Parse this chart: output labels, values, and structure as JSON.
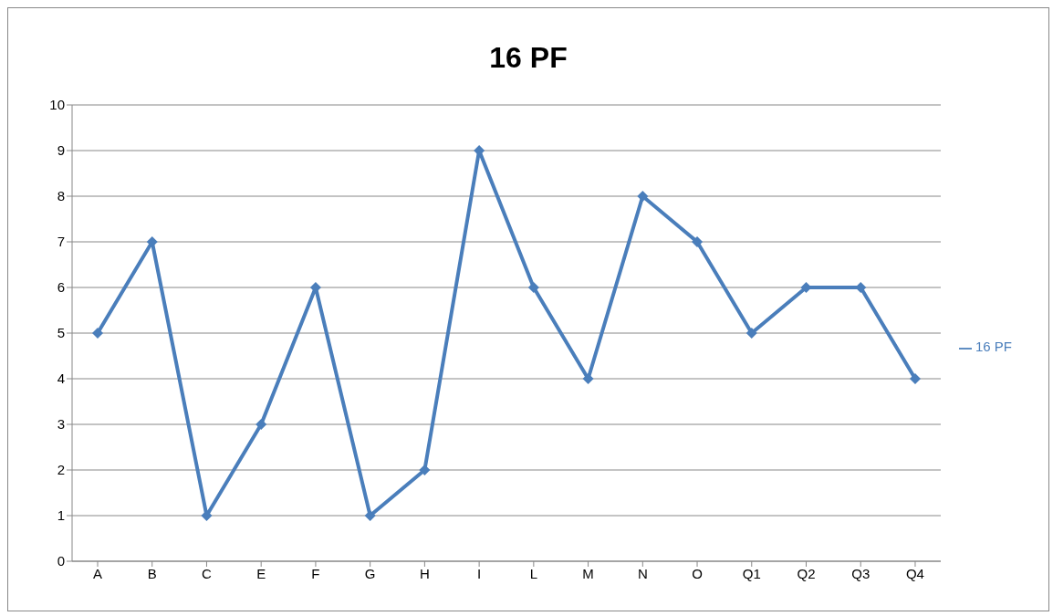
{
  "chart_data": {
    "type": "line",
    "title": "16 PF",
    "categories": [
      "A",
      "B",
      "C",
      "E",
      "F",
      "G",
      "H",
      "I",
      "L",
      "M",
      "N",
      "O",
      "Q1",
      "Q2",
      "Q3",
      "Q4"
    ],
    "series": [
      {
        "name": "16 PF",
        "color": "#4a7ebb",
        "values": [
          5,
          7,
          1,
          3,
          6,
          1,
          2,
          9,
          6,
          4,
          8,
          7,
          5,
          6,
          6,
          4
        ]
      }
    ],
    "ylim": [
      0,
      10
    ],
    "yticks": [
      0,
      1,
      2,
      3,
      4,
      5,
      6,
      7,
      8,
      9,
      10
    ],
    "grid": "y",
    "legend": "right",
    "marker": "diamond"
  }
}
